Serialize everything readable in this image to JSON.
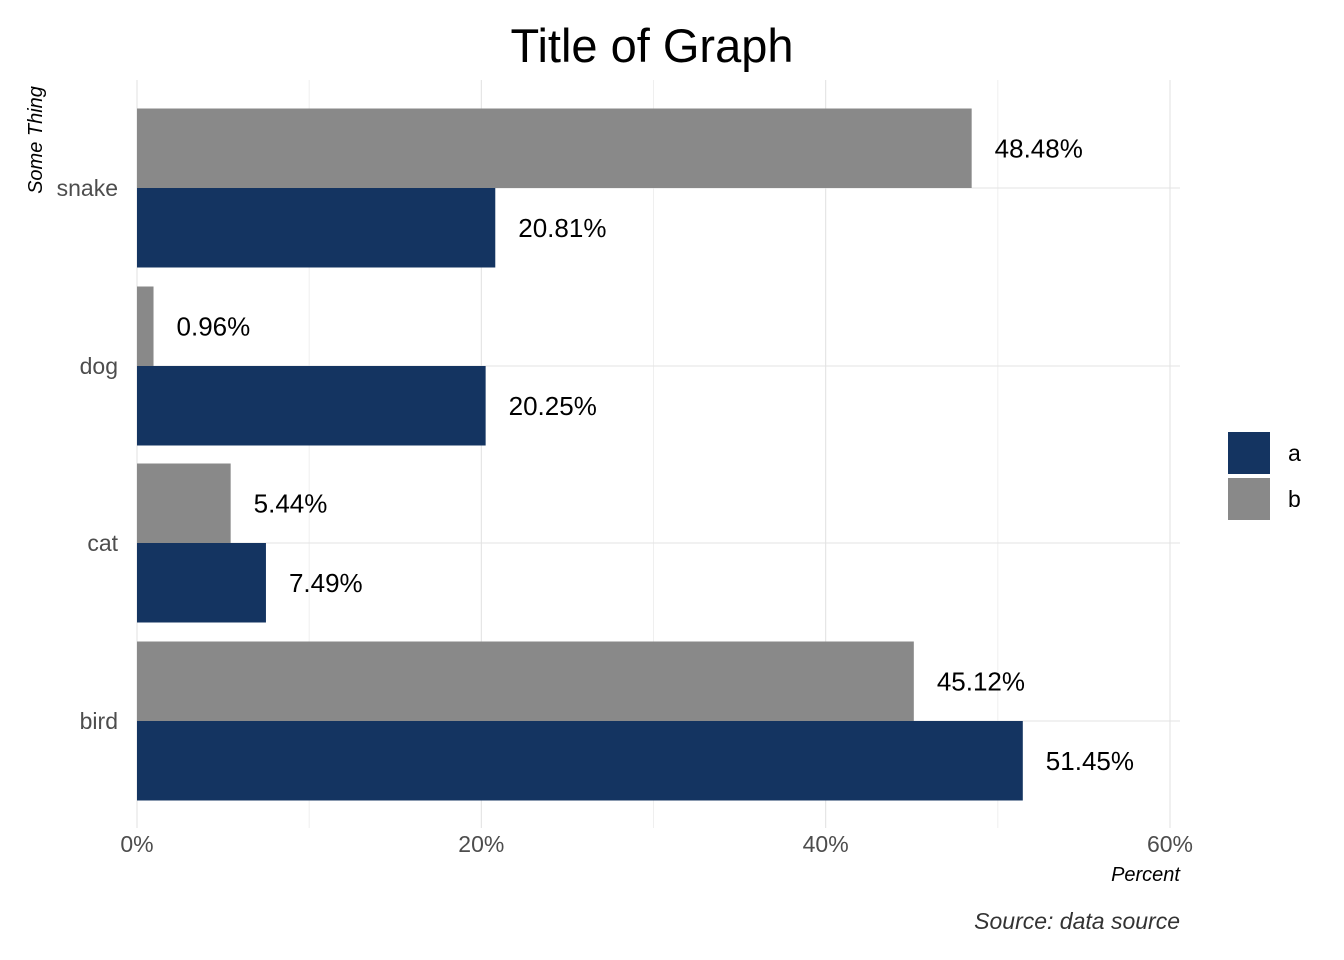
{
  "chart_data": {
    "type": "bar",
    "orientation": "horizontal",
    "title": "Title of Graph",
    "xlabel": "Percent",
    "ylabel": "Some Thing",
    "caption": "Source: data source",
    "categories": [
      "bird",
      "cat",
      "dog",
      "snake"
    ],
    "series": [
      {
        "name": "a",
        "color": "#143461",
        "values": [
          51.45,
          7.49,
          20.25,
          20.81
        ],
        "labels": [
          "51.45%",
          "7.49%",
          "20.25%",
          "20.81%"
        ]
      },
      {
        "name": "b",
        "color": "#898989",
        "values": [
          45.12,
          5.44,
          0.96,
          48.48
        ],
        "labels": [
          "45.12%",
          "5.44%",
          "0.96%",
          "48.48%"
        ]
      }
    ],
    "xlim": [
      0,
      60
    ],
    "x_ticks": [
      0,
      20,
      40,
      60
    ],
    "x_tick_labels": [
      "0%",
      "20%",
      "40%",
      "60%"
    ],
    "grid": true,
    "legend_position": "right"
  }
}
